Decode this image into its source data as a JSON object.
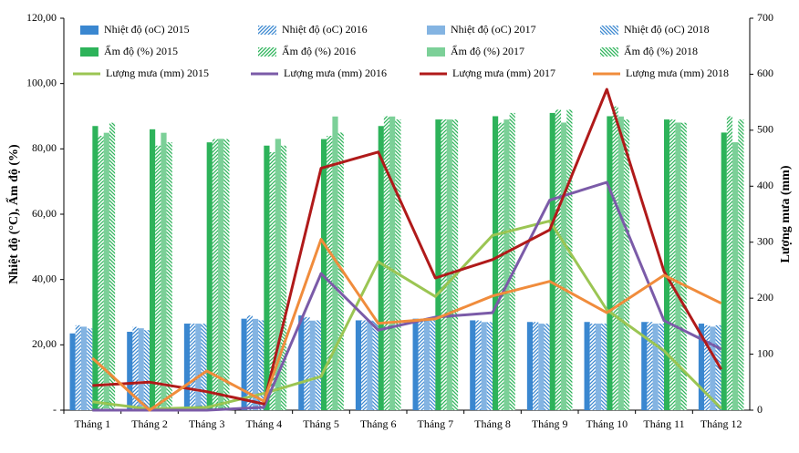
{
  "chart_data": {
    "type": "combo",
    "ylabel": "Nhiệt độ (°C), Ẩm độ (%)",
    "y2label": "Lượng mưa (mm)",
    "categories": [
      "Tháng 1",
      "Tháng 2",
      "Tháng 3",
      "Tháng 4",
      "Tháng 5",
      "Tháng 6",
      "Tháng 7",
      "Tháng 8",
      "Tháng 9",
      "Tháng 10",
      "Tháng 11",
      "Tháng 12"
    ],
    "ylim": [
      0,
      120
    ],
    "yticks": [
      {
        "value": 0,
        "label": "-"
      },
      {
        "value": 20,
        "label": "20,00"
      },
      {
        "value": 40,
        "label": "40,00"
      },
      {
        "value": 60,
        "label": "60,00"
      },
      {
        "value": 80,
        "label": "80,00"
      },
      {
        "value": 100,
        "label": "100,00"
      },
      {
        "value": 120,
        "label": "120,00"
      }
    ],
    "y2lim": [
      0,
      700
    ],
    "y2ticks": [
      0,
      100,
      200,
      300,
      400,
      500,
      600,
      700
    ],
    "grid": false,
    "series": [
      {
        "name": "Nhiệt độ (oC) 2015",
        "type": "bar",
        "pattern": "solid",
        "color": "#3a87d0",
        "values": [
          23.5,
          24,
          26.5,
          28,
          29,
          27.5,
          28,
          27.5,
          27,
          27,
          27,
          26.5
        ]
      },
      {
        "name": "Nhiệt độ (oC) 2016",
        "type": "bar",
        "pattern": "hatch",
        "color": "#3a87d0",
        "values": [
          26,
          25.5,
          26.5,
          29,
          28.5,
          27.5,
          28,
          27.5,
          27,
          26.5,
          27,
          26
        ]
      },
      {
        "name": "Nhiệt độ (oC) 2017",
        "type": "bar",
        "pattern": "hlines",
        "color": "#3a87d0",
        "values": [
          25.5,
          25,
          26.5,
          28,
          27.5,
          27.5,
          28,
          27,
          26.5,
          26.5,
          26.5,
          25.5
        ]
      },
      {
        "name": "Nhiệt độ (oC) 2018",
        "type": "bar",
        "pattern": "backhatch",
        "color": "#3a87d0",
        "values": [
          25,
          24.5,
          26.5,
          27.5,
          27.5,
          27.5,
          28,
          27,
          26.5,
          26.5,
          26.5,
          26
        ]
      },
      {
        "name": "Ẩm độ (%) 2015",
        "type": "bar",
        "pattern": "solid",
        "color": "#2db35a",
        "values": [
          87,
          86,
          82,
          81,
          83,
          87,
          89,
          90,
          91,
          90,
          89,
          85
        ]
      },
      {
        "name": "Ẩm độ (%) 2016",
        "type": "bar",
        "pattern": "hatch",
        "color": "#2db35a",
        "values": [
          84,
          81,
          83,
          79,
          84,
          90,
          89,
          88,
          92,
          93,
          89,
          90
        ]
      },
      {
        "name": "Ẩm độ (%) 2017",
        "type": "bar",
        "pattern": "hlines",
        "color": "#2db35a",
        "values": [
          85,
          85,
          83,
          83,
          90,
          90,
          89,
          89,
          88,
          90,
          88,
          82
        ]
      },
      {
        "name": "Ẩm độ (%) 2018",
        "type": "bar",
        "pattern": "backhatch",
        "color": "#2db35a",
        "values": [
          88,
          82,
          83,
          81,
          85,
          89,
          89,
          91,
          92,
          89,
          88,
          89
        ]
      },
      {
        "name": "Lượng mưa (mm) 2015",
        "type": "line",
        "axis": "y2",
        "color": "#9bc553",
        "values": [
          15,
          2,
          5,
          30,
          60,
          265,
          203,
          312,
          338,
          179,
          106,
          3
        ]
      },
      {
        "name": "Lượng mưa (mm) 2016",
        "type": "line",
        "axis": "y2",
        "color": "#7b5ba8",
        "values": [
          0,
          0,
          0,
          5,
          244,
          143,
          166,
          174,
          375,
          407,
          160,
          109
        ]
      },
      {
        "name": "Lượng mưa (mm) 2017",
        "type": "line",
        "axis": "y2",
        "color": "#b01a1a",
        "values": [
          44,
          50,
          33,
          11,
          432,
          461,
          236,
          269,
          322,
          573,
          248,
          73
        ]
      },
      {
        "name": "Lượng mưa (mm) 2018",
        "type": "line",
        "axis": "y2",
        "color": "#f08c3c",
        "values": [
          93,
          0,
          70,
          16,
          305,
          155,
          163,
          204,
          230,
          174,
          241,
          191
        ]
      }
    ]
  }
}
